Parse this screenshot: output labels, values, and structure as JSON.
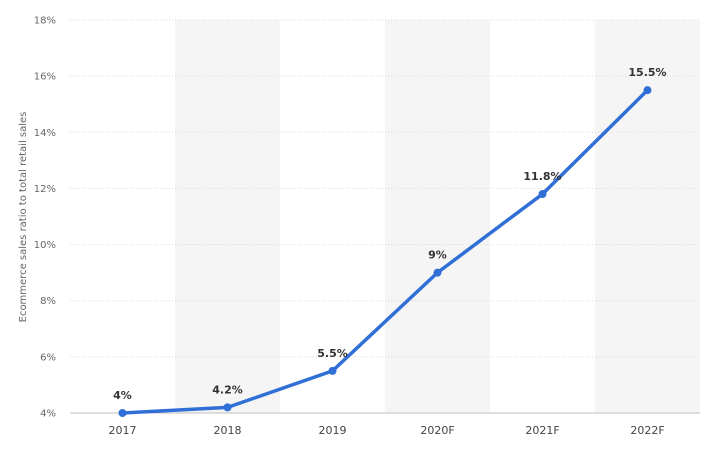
{
  "chart_data": {
    "type": "line",
    "title": "",
    "xlabel": "",
    "ylabel": "Ecommerce sales ratio to total retail sales",
    "categories": [
      "2017",
      "2018",
      "2019",
      "2020F",
      "2021F",
      "2022F"
    ],
    "series": [
      {
        "values": [
          4,
          4.2,
          5.5,
          9,
          11.8,
          15.5
        ],
        "labels": [
          "4%",
          "4.2%",
          "5.5%",
          "9%",
          "11.8%",
          "15.5%"
        ]
      }
    ],
    "ylim": [
      4,
      18
    ],
    "yticks": [
      4,
      6,
      8,
      10,
      12,
      14,
      16,
      18
    ],
    "ytick_labels": [
      "4%",
      "6%",
      "8%",
      "10%",
      "12%",
      "14%",
      "16%",
      "18%"
    ],
    "grid": true,
    "legend": "none",
    "colors": {
      "line": "#2f6fd6",
      "band": "#f5f5f5",
      "grid": "#d9d9d9"
    }
  }
}
